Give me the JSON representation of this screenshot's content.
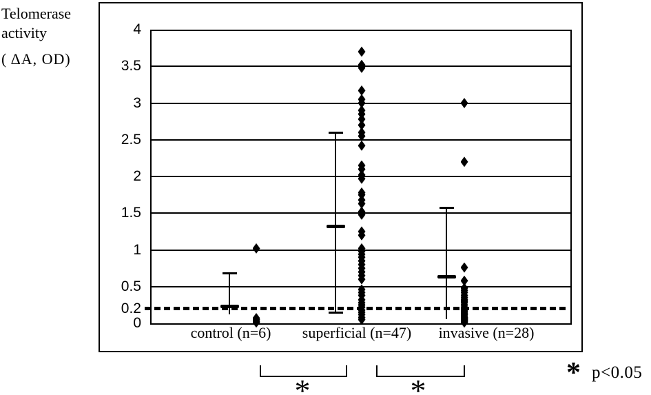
{
  "title": {
    "lines": [
      "Telomerase",
      "activity",
      "( ΔA, OD)"
    ]
  },
  "legend": {
    "symbol": "*",
    "text": "p<0.05"
  },
  "chart_data": {
    "type": "scatter",
    "y_axis": {
      "label": "Telomerase activity (ΔA, OD)",
      "range": [
        0,
        4
      ],
      "ticks": [
        4,
        3.5,
        3,
        2.5,
        2,
        1.5,
        1,
        0.5,
        0.2,
        0
      ],
      "gridlines": [
        3.5,
        3,
        2.5,
        2,
        1.5,
        1,
        0.5
      ],
      "threshold_line": 0.2
    },
    "groups": [
      {
        "label": "control (n=6)",
        "n": 6,
        "values": [
          1.02,
          0.07,
          0.05,
          0.03,
          0.02,
          0.01
        ],
        "mean_marker": 0.23,
        "error_bar": {
          "top": 0.68,
          "bottom": 0.12,
          "cap_top": true,
          "cap_bottom": false
        }
      },
      {
        "label": "superficial (n=47)",
        "n": 47,
        "values": [
          3.7,
          3.52,
          3.48,
          3.17,
          3.05,
          3.0,
          2.9,
          2.85,
          2.78,
          2.7,
          2.6,
          2.55,
          2.42,
          2.15,
          2.1,
          2.02,
          1.97,
          1.78,
          1.75,
          1.68,
          1.63,
          1.52,
          1.48,
          1.25,
          1.2,
          1.02,
          0.98,
          0.94,
          0.9,
          0.85,
          0.8,
          0.75,
          0.7,
          0.65,
          0.6,
          0.46,
          0.42,
          0.38,
          0.32,
          0.28,
          0.25,
          0.22,
          0.18,
          0.15,
          0.12,
          0.08,
          0.05
        ],
        "mean_marker": 1.32,
        "error_bar": {
          "top": 2.6,
          "bottom": 0.15,
          "cap_top": true,
          "cap_bottom": true
        }
      },
      {
        "label": "invasive (n=28)",
        "n": 28,
        "values": [
          3.0,
          2.2,
          0.76,
          0.58,
          0.48,
          0.45,
          0.42,
          0.38,
          0.35,
          0.32,
          0.3,
          0.28,
          0.25,
          0.22,
          0.2,
          0.18,
          0.16,
          0.14,
          0.12,
          0.1,
          0.08,
          0.07,
          0.06,
          0.05,
          0.04,
          0.03,
          0.02,
          0.01
        ],
        "mean_marker": 0.63,
        "error_bar": {
          "top": 1.57,
          "bottom": 0.06,
          "cap_top": true,
          "cap_bottom": false
        }
      }
    ],
    "significance": {
      "brackets": [
        {
          "between": [
            "control (n=6)",
            "superficial (n=47)"
          ],
          "label": "*"
        },
        {
          "between": [
            "superficial (n=47)",
            "invasive (n=28)"
          ],
          "label": "*"
        }
      ],
      "note_symbol": "*",
      "note_text": "p<0.05"
    }
  }
}
